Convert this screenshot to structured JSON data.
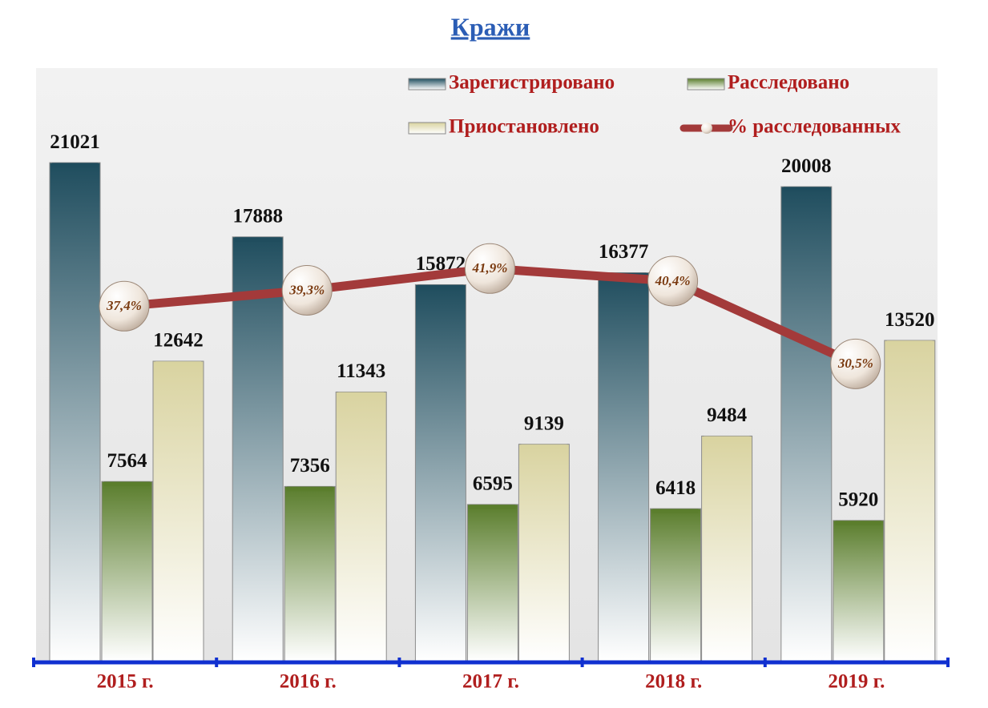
{
  "chart_data": {
    "type": "bar",
    "title": "Кражи",
    "categories": [
      "2015 г.",
      "2016 г.",
      "2017 г.",
      "2018 г.",
      "2019 г."
    ],
    "ylim": [
      0,
      24000
    ],
    "y2lim": [
      -5,
      63
    ],
    "series": [
      {
        "name": "Зарегистрировано",
        "type": "bar",
        "color": "#1f4d5e",
        "values": [
          21021,
          17888,
          15872,
          16377,
          20008
        ]
      },
      {
        "name": "Расследовано",
        "type": "bar",
        "color": "#5a7d2c",
        "values": [
          7564,
          7356,
          6595,
          6418,
          5920
        ]
      },
      {
        "name": "Приостановлено",
        "type": "bar",
        "color": "#d9d3a0",
        "values": [
          12642,
          11343,
          9139,
          9484,
          13520
        ]
      },
      {
        "name": "% расследованных",
        "type": "line",
        "axis": "y2",
        "color": "#a33a3a",
        "values": [
          37.4,
          39.3,
          41.9,
          40.4,
          30.5
        ],
        "value_labels": [
          "37,4%",
          "39,3%",
          "41,9%",
          "40,4%",
          "30,5%"
        ]
      }
    ]
  }
}
